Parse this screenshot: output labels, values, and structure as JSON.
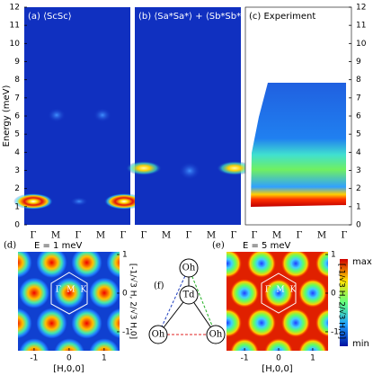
{
  "energy_axis": {
    "label": "Energy (meV)",
    "ylim": [
      0,
      12
    ],
    "yticks": [
      0,
      1,
      2,
      3,
      4,
      5,
      6,
      7,
      8,
      9,
      10,
      11,
      12
    ]
  },
  "spectra": [
    {
      "title": "(a) ⟨ScSc⟩",
      "categories": [
        "Γ",
        "M",
        "Γ",
        "M",
        "Γ"
      ]
    },
    {
      "title": "(b) ⟨Sa*Sa*⟩ + ⟨Sb*Sb*⟩",
      "categories": [
        "Γ",
        "M",
        "Γ",
        "M",
        "Γ"
      ]
    },
    {
      "title": "(c) Experiment",
      "categories": [
        "Γ",
        "M",
        "Γ",
        "M",
        "Γ"
      ]
    }
  ],
  "maps": [
    {
      "title": "(d)",
      "subtitle": "E = 1 meV",
      "xlabel": "[H,0,0]",
      "ylabel": "[-1/√3 H, 2/√3 H,0]",
      "xlim": [
        -1.46,
        1.44
      ],
      "xticks": [
        -1,
        0,
        1
      ],
      "ylim": [
        -1.49,
        1.07
      ],
      "yticks": [
        -1,
        0,
        1
      ],
      "points": [
        "Γ",
        "M",
        "K"
      ]
    },
    {
      "title": "(e)",
      "subtitle": "E = 5 meV",
      "xlabel": "[H,0,0]",
      "ylabel": "[-1/√3 H, 2/√3 H,0]",
      "xlim": [
        -1.53,
        1.45
      ],
      "xticks": [
        -1,
        0,
        1
      ],
      "ylim": [
        -1.49,
        1.07
      ],
      "yticks": [
        -1,
        0,
        1
      ],
      "points": [
        "Γ",
        "M",
        "K"
      ]
    }
  ],
  "diagram": {
    "label": "(f)",
    "nodes": [
      "Oh",
      "Td",
      "Oh",
      "Oh"
    ]
  },
  "colorbar": {
    "max": "max",
    "min": "min"
  }
}
